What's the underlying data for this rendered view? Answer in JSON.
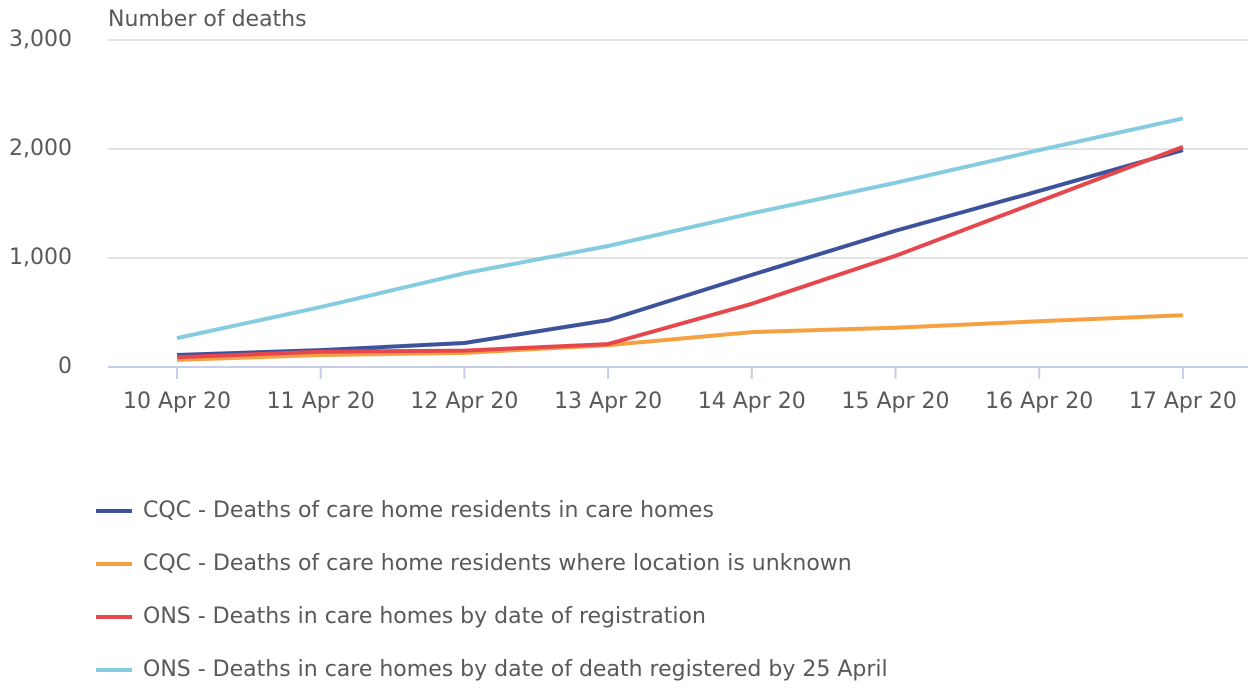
{
  "chart_data": {
    "type": "line",
    "ylabel": "Number of deaths",
    "categories": [
      "10 Apr 20",
      "11 Apr 20",
      "12 Apr 20",
      "13 Apr 20",
      "14 Apr 20",
      "15 Apr 20",
      "16 Apr 20",
      "17 Apr 20"
    ],
    "series": [
      {
        "name": "CQC - Deaths of care home residents in care homes",
        "color": "#3c529a",
        "values": [
          110,
          155,
          220,
          430,
          845,
          1250,
          1615,
          1990
        ]
      },
      {
        "name": "CQC - Deaths of care home residents where location is unknown",
        "color": "#f5a142",
        "values": [
          65,
          110,
          130,
          200,
          320,
          360,
          420,
          475
        ]
      },
      {
        "name": "ONS - Deaths in care homes by date of registration",
        "color": "#e5474c",
        "values": [
          90,
          140,
          150,
          210,
          580,
          1020,
          1520,
          2020
        ]
      },
      {
        "name": "ONS - Deaths in care homes by date of death registered by 25 April",
        "color": "#86cce0",
        "values": [
          265,
          550,
          860,
          1110,
          1410,
          1690,
          1990,
          2280
        ]
      }
    ],
    "ylim": [
      0,
      3000
    ],
    "yticks": [
      0,
      {
        "value": 1000,
        "label": "1,000"
      },
      {
        "value": 2000,
        "label": "2,000"
      },
      {
        "value": 3000,
        "label": "3,000"
      }
    ],
    "grid": true,
    "legend": "bottom"
  }
}
